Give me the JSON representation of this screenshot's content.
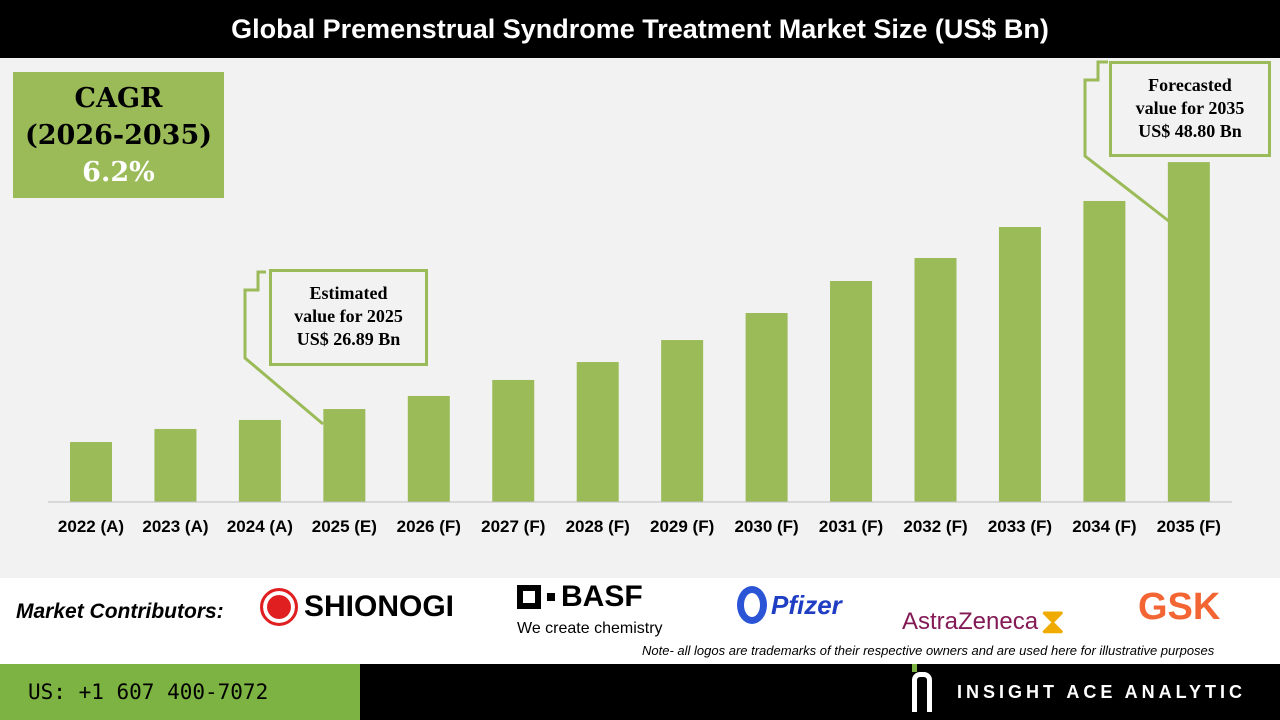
{
  "header": {
    "title": "Global Premenstrual Syndrome Treatment Market Size (US$ Bn)"
  },
  "cagr": {
    "label": "CAGR",
    "period": "(2026-2035)",
    "value": "6.2%"
  },
  "callouts": {
    "estimated": [
      "Estimated",
      "value for 2025",
      "US$ 26.89 Bn"
    ],
    "forecasted": [
      "Forecasted",
      "value for 2035",
      "US$ 48.80 Bn"
    ]
  },
  "chart_data": {
    "type": "bar",
    "title": "Global Premenstrual Syndrome Treatment Market Size (US$ Bn)",
    "categories": [
      "2022 (A)",
      "2023 (A)",
      "2024 (A)",
      "2025 (E)",
      "2026 (F)",
      "2027 (F)",
      "2028 (F)",
      "2029 (F)",
      "2030 (F)",
      "2031 (F)",
      "2032 (F)",
      "2033 (F)",
      "2034 (F)",
      "2035 (F)"
    ],
    "values": [
      23.96,
      25.12,
      25.92,
      26.89,
      28.05,
      29.47,
      31.06,
      33.01,
      35.41,
      38.25,
      40.29,
      43.04,
      45.35,
      48.8
    ],
    "bar_color": "#9bbb59",
    "grid": false,
    "legend": "none"
  },
  "contributors": {
    "label": "Market Contributors:",
    "logos": [
      "SHIONOGI",
      "BASF",
      "We create chemistry",
      "Pfizer",
      "AstraZeneca",
      "GSK"
    ],
    "note": "Note- all logos are trademarks of their respective owners and are used here for illustrative purposes"
  },
  "footer": {
    "phone": "US: +1 607 400-7072",
    "brand": "INSIGHT ACE ANALYTIC"
  }
}
